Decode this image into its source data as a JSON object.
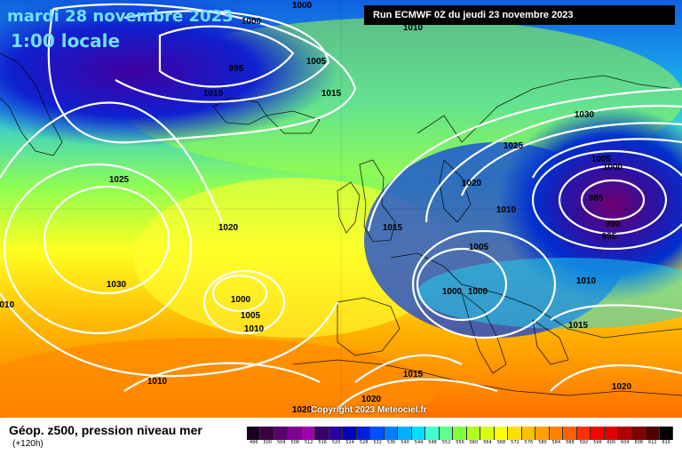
{
  "header": {
    "date": "mardi 28 novembre 2023",
    "time": "1:00 locale",
    "run": "Run ECMWF 0Z du jeudi 23 novembre 2023"
  },
  "copyright": "Copyright 2023 Meteociel.fr",
  "footer": {
    "title": "Géop. z500, pression niveau mer",
    "subtitle": "(+120h)"
  },
  "legend": {
    "levels": [
      "496",
      "500",
      "504",
      "508",
      "512",
      "516",
      "520",
      "524",
      "528",
      "532",
      "536",
      "540",
      "544",
      "548",
      "552",
      "556",
      "560",
      "564",
      "568",
      "572",
      "576",
      "580",
      "584",
      "588",
      "592",
      "596",
      "600",
      "604",
      "608",
      "612",
      "616"
    ],
    "colors": [
      "#1a0020",
      "#3a0040",
      "#5a0070",
      "#800090",
      "#a000b0",
      "#3a006a",
      "#2a00a0",
      "#0000c0",
      "#0020e0",
      "#0050ff",
      "#0080ff",
      "#00b0ff",
      "#00e0ff",
      "#40ffd0",
      "#60ff90",
      "#80ff40",
      "#b0ff20",
      "#d8ff10",
      "#ffff00",
      "#ffe000",
      "#ffc000",
      "#ffa000",
      "#ff8000",
      "#ff6000",
      "#ff3000",
      "#ff0000",
      "#e00000",
      "#b00000",
      "#800000",
      "#500000",
      "#000000"
    ]
  },
  "isobar_labels": [
    {
      "text": "1000"
    },
    {
      "text": "1000"
    },
    {
      "text": "995"
    },
    {
      "text": "1005"
    },
    {
      "text": "1010"
    },
    {
      "text": "1015"
    },
    {
      "text": "1010"
    },
    {
      "text": "1030"
    },
    {
      "text": "1025"
    },
    {
      "text": "1005"
    },
    {
      "text": "1000"
    },
    {
      "text": "1020"
    },
    {
      "text": "985"
    },
    {
      "text": "990"
    },
    {
      "text": "995"
    },
    {
      "text": "1010"
    },
    {
      "text": "1015"
    },
    {
      "text": "1005"
    },
    {
      "text": "1025"
    },
    {
      "text": "1020"
    },
    {
      "text": "1030"
    },
    {
      "text": "1000"
    },
    {
      "text": "1005"
    },
    {
      "text": "1010"
    },
    {
      "text": "1000"
    },
    {
      "text": "1000"
    },
    {
      "text": "1010"
    },
    {
      "text": "1015"
    },
    {
      "text": "1015"
    },
    {
      "text": "1020"
    },
    {
      "text": "1020"
    },
    {
      "text": "1010"
    },
    {
      "text": "1020"
    },
    {
      "text": "1010"
    }
  ]
}
